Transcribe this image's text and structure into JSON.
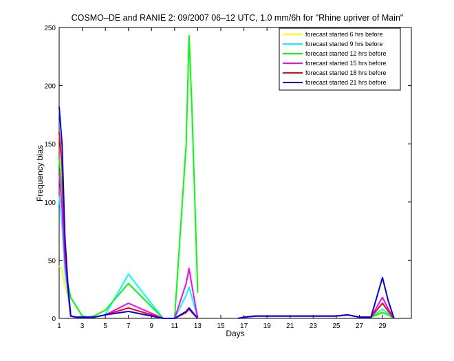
{
  "chart_data": {
    "type": "line",
    "title": "COSMO–DE and RANIE 2: 09/2007 06–12 UTC, 1.0 mm/6h for \"Rhine upriver of Main\"",
    "xlabel": "Days",
    "ylabel": "Frequency bias",
    "xlim": [
      1,
      31.5
    ],
    "ylim": [
      0,
      250
    ],
    "xticks": [
      1,
      3,
      5,
      7,
      9,
      11,
      13,
      15,
      17,
      19,
      21,
      23,
      25,
      27,
      29
    ],
    "yticks": [
      0,
      50,
      100,
      150,
      200,
      250
    ],
    "grid": false,
    "legend_position": "top-right",
    "series": [
      {
        "name": "forecast started 6 hrs before",
        "color": "#ffff00",
        "x": [
          1,
          1.25,
          1.5,
          1.75,
          2,
          2.5,
          3,
          3.5,
          4,
          5,
          7,
          10,
          11,
          12,
          12.25,
          12.5,
          13,
          14,
          16.5,
          17,
          18,
          25,
          26,
          27,
          28,
          29,
          29.5,
          30
        ],
        "values": [
          45,
          42,
          28,
          20,
          2,
          1,
          1,
          1,
          1,
          3,
          null,
          0,
          0,
          5,
          9,
          6,
          0,
          null,
          0,
          1,
          2,
          2,
          3,
          1,
          1,
          6,
          3,
          0
        ]
      },
      {
        "name": "forecast started 9 hrs before",
        "color": "#00ffff",
        "x": [
          1,
          1.25,
          1.5,
          1.75,
          2,
          2.5,
          3,
          3.5,
          4,
          5,
          7,
          10,
          11,
          12,
          12.25,
          12.5,
          13,
          14,
          16.5,
          17,
          18,
          25,
          26,
          27,
          28,
          29,
          29.5,
          30
        ],
        "values": [
          105,
          80,
          40,
          22,
          2,
          1,
          1,
          1,
          1,
          3,
          38,
          0,
          0,
          20,
          27,
          18,
          0,
          null,
          0,
          1,
          2,
          2,
          3,
          1,
          1,
          8,
          4,
          0
        ]
      },
      {
        "name": "forecast started 12 hrs before",
        "color": "#00ff00",
        "x": [
          1,
          1.25,
          1.5,
          1.75,
          2,
          2.5,
          3,
          3.5,
          4,
          5,
          7,
          10,
          11,
          12,
          12.25,
          12.5,
          13,
          14,
          16.5,
          17,
          18,
          25,
          26,
          27,
          28,
          29,
          29.5,
          30
        ],
        "values": [
          138,
          110,
          60,
          30,
          18,
          10,
          2,
          1,
          2,
          7,
          30,
          0,
          0,
          150,
          243,
          180,
          22,
          null,
          0,
          1,
          2,
          2,
          3,
          1,
          1,
          5,
          3,
          0
        ]
      },
      {
        "name": "forecast started 15 hrs before",
        "color": "#ff00ff",
        "x": [
          1,
          1.25,
          1.5,
          1.75,
          2,
          2.5,
          3,
          3.5,
          4,
          5,
          7,
          10,
          11,
          12,
          12.25,
          12.5,
          13,
          14,
          16.5,
          17,
          18,
          25,
          26,
          27,
          28,
          29,
          29.5,
          30
        ],
        "values": [
          125,
          95,
          50,
          25,
          2,
          1,
          1,
          1,
          1,
          3,
          13,
          0,
          0,
          30,
          43,
          28,
          0,
          null,
          0,
          1,
          2,
          2,
          3,
          1,
          1,
          18,
          8,
          0
        ]
      },
      {
        "name": "forecast started 18 hrs before",
        "color": "#ff0000",
        "x": [
          1,
          1.25,
          1.5,
          1.75,
          2,
          2.5,
          3,
          3.5,
          4,
          5,
          7,
          10,
          11,
          12,
          12.25,
          12.5,
          13,
          14,
          16.5,
          17,
          18,
          25,
          26,
          27,
          28,
          29,
          29.5,
          30
        ],
        "values": [
          160,
          130,
          60,
          28,
          2,
          1,
          1,
          1,
          1,
          3,
          9,
          0,
          0,
          5,
          8,
          5,
          0,
          null,
          0,
          1,
          2,
          2,
          3,
          1,
          1,
          13,
          6,
          0
        ]
      },
      {
        "name": "forecast started 21 hrs before",
        "color": "#0000ff",
        "x": [
          1,
          1.25,
          1.5,
          1.75,
          2,
          2.5,
          3,
          3.5,
          4,
          5,
          7,
          10,
          11,
          12,
          12.25,
          12.5,
          13,
          14,
          16.5,
          17,
          18,
          25,
          26,
          27,
          28,
          29,
          29.5,
          30
        ],
        "values": [
          182,
          150,
          70,
          30,
          2,
          1,
          1,
          1,
          1,
          3,
          6,
          0,
          0,
          6,
          9,
          6,
          0,
          null,
          0,
          1,
          2,
          2,
          3,
          1,
          1,
          35,
          15,
          0
        ]
      }
    ]
  }
}
